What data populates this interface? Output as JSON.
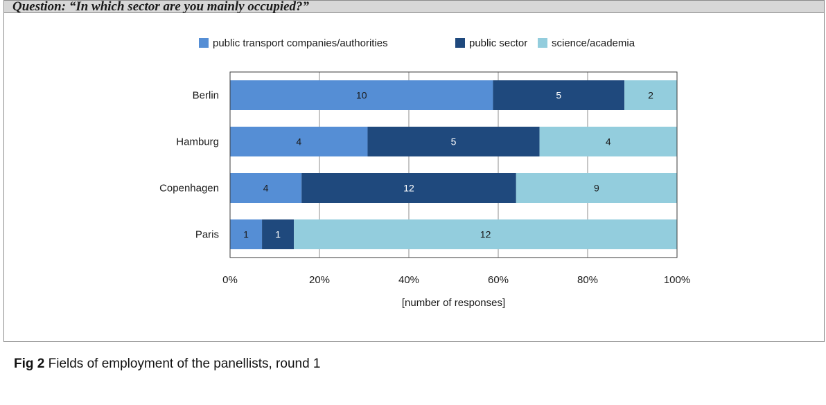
{
  "question": "Question: “In which sector are you mainly occupied?”",
  "caption": {
    "label": "Fig 2",
    "text": "Fields of employment of the panellists, round 1"
  },
  "colors": {
    "public_transport": "#558ed5",
    "public_sector": "#1f497d",
    "science": "#93cddd"
  },
  "chart_data": {
    "type": "bar",
    "orientation": "horizontal",
    "stacking": "percent",
    "categories": [
      "Berlin",
      "Hamburg",
      "Copenhagen",
      "Paris"
    ],
    "series": [
      {
        "name": "public transport companies/authorities",
        "values": [
          10,
          4,
          4,
          1
        ],
        "color": "#558ed5",
        "label_color": "#1a1a1a"
      },
      {
        "name": "public sector",
        "values": [
          5,
          5,
          12,
          1
        ],
        "color": "#1f497d",
        "label_color": "#ffffff"
      },
      {
        "name": "science/academia",
        "values": [
          2,
          4,
          9,
          12
        ],
        "color": "#93cddd",
        "label_color": "#1a1a1a"
      }
    ],
    "xlabel": "[number of responses]",
    "xticks": [
      "0%",
      "20%",
      "40%",
      "60%",
      "80%",
      "100%"
    ],
    "xlim": [
      0,
      100
    ],
    "grid": "vertical",
    "legend": "top-center"
  }
}
